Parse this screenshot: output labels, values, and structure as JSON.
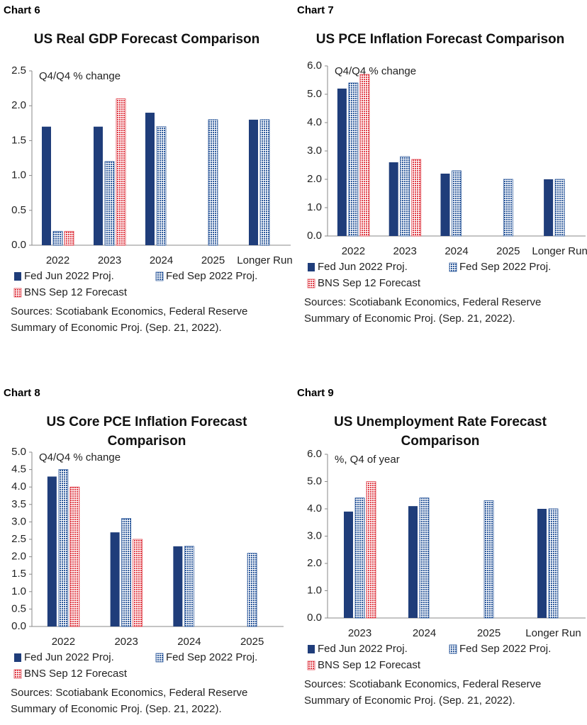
{
  "chart_data": [
    {
      "type": "bar",
      "label": "Chart 6",
      "title": "US Real GDP Forecast Comparison",
      "unit": "Q4/Q4 % change",
      "categories": [
        "2022",
        "2023",
        "2024",
        "2025",
        "Longer Run"
      ],
      "series": [
        {
          "name": "Fed Jun 2022 Proj.",
          "color": "#1f3d7a",
          "values": [
            1.7,
            1.7,
            1.9,
            null,
            1.8
          ]
        },
        {
          "name": "Fed Sep 2022 Proj.",
          "color": "#2e5a9c",
          "values": [
            0.2,
            1.2,
            1.7,
            1.8,
            1.8
          ]
        },
        {
          "name": "BNS Sep 12 Forecast",
          "color": "#e0404a",
          "values": [
            0.2,
            2.1,
            null,
            null,
            null
          ]
        }
      ],
      "ylim": [
        0,
        2.5
      ],
      "yticks": [
        {
          "value": 0,
          "label": "0.0"
        },
        0.5,
        {
          "value": 1,
          "label": "1.0"
        },
        1.5,
        {
          "value": 2,
          "label": "2.0"
        },
        2.5
      ],
      "source": "Sources: Scotiabank Economics, Federal Reserve Summary of Economic Proj. (Sep. 21, 2022)."
    },
    {
      "type": "bar",
      "label": "Chart 7",
      "title": "US PCE Inflation Forecast Comparison",
      "unit": "Q4/Q4 % change",
      "categories": [
        "2022",
        "2023",
        "2024",
        "2025",
        "Longer Run"
      ],
      "series": [
        {
          "name": "Fed Jun 2022 Proj.",
          "color": "#1f3d7a",
          "values": [
            5.2,
            2.6,
            2.2,
            null,
            2.0
          ]
        },
        {
          "name": "Fed Sep 2022 Proj.",
          "color": "#2e5a9c",
          "values": [
            5.4,
            2.8,
            2.3,
            2.0,
            2.0
          ]
        },
        {
          "name": "BNS Sep 12 Forecast",
          "color": "#e0404a",
          "values": [
            5.7,
            2.7,
            null,
            null,
            null
          ]
        }
      ],
      "ylim": [
        0,
        6
      ],
      "yticks": [
        {
          "value": 0,
          "label": "0.0"
        },
        {
          "value": 1,
          "label": "1.0"
        },
        {
          "value": 2,
          "label": "2.0"
        },
        {
          "value": 3,
          "label": "3.0"
        },
        {
          "value": 4,
          "label": "4.0"
        },
        {
          "value": 5,
          "label": "5.0"
        },
        {
          "value": 6,
          "label": "6.0"
        }
      ],
      "source": "Sources: Scotiabank Economics, Federal Reserve Summary of Economic Proj. (Sep. 21, 2022)."
    },
    {
      "type": "bar",
      "label": "Chart 8",
      "title": "US Core PCE Inflation  Forecast Comparison",
      "unit": "Q4/Q4 % change",
      "categories": [
        "2022",
        "2023",
        "2024",
        "2025"
      ],
      "series": [
        {
          "name": "Fed Jun 2022 Proj.",
          "color": "#1f3d7a",
          "values": [
            4.3,
            2.7,
            2.3,
            null
          ]
        },
        {
          "name": "Fed Sep 2022 Proj.",
          "color": "#2e5a9c",
          "values": [
            4.5,
            3.1,
            2.3,
            2.1
          ]
        },
        {
          "name": "BNS Sep 12 Forecast",
          "color": "#e0404a",
          "values": [
            4.0,
            2.5,
            null,
            null
          ]
        }
      ],
      "ylim": [
        0,
        5
      ],
      "yticks": [
        {
          "value": 0,
          "label": "0.0"
        },
        0.5,
        {
          "value": 1,
          "label": "1.0"
        },
        1.5,
        {
          "value": 2,
          "label": "2.0"
        },
        2.5,
        {
          "value": 3,
          "label": "3.0"
        },
        3.5,
        {
          "value": 4,
          "label": "4.0"
        },
        4.5,
        {
          "value": 5,
          "label": "5.0"
        }
      ],
      "source": "Sources: Scotiabank Economics, Federal Reserve Summary of Economic Proj. (Sep. 21, 2022)."
    },
    {
      "type": "bar",
      "label": "Chart 9",
      "title": "US Unemployment Rate Forecast Comparison",
      "unit": "%, Q4 of year",
      "categories": [
        "2023",
        "2024",
        "2025",
        "Longer Run"
      ],
      "series": [
        {
          "name": "Fed Jun 2022 Proj.",
          "color": "#1f3d7a",
          "values": [
            3.9,
            4.1,
            null,
            4.0
          ]
        },
        {
          "name": "Fed Sep 2022 Proj.",
          "color": "#2e5a9c",
          "values": [
            4.4,
            4.4,
            4.3,
            4.0
          ]
        },
        {
          "name": "BNS Sep 12 Forecast",
          "color": "#e0404a",
          "values": [
            5.0,
            null,
            null,
            null
          ]
        }
      ],
      "ylim": [
        0,
        6
      ],
      "yticks": [
        {
          "value": 0,
          "label": "0.0"
        },
        {
          "value": 1,
          "label": "1.0"
        },
        {
          "value": 2,
          "label": "2.0"
        },
        {
          "value": 3,
          "label": "3.0"
        },
        {
          "value": 4,
          "label": "4.0"
        },
        {
          "value": 5,
          "label": "5.0"
        },
        {
          "value": 6,
          "label": "6.0"
        }
      ],
      "source": "Sources: Scotiabank Economics, Federal Reserve Summary of Economic Proj. (Sep. 21, 2022)."
    }
  ]
}
